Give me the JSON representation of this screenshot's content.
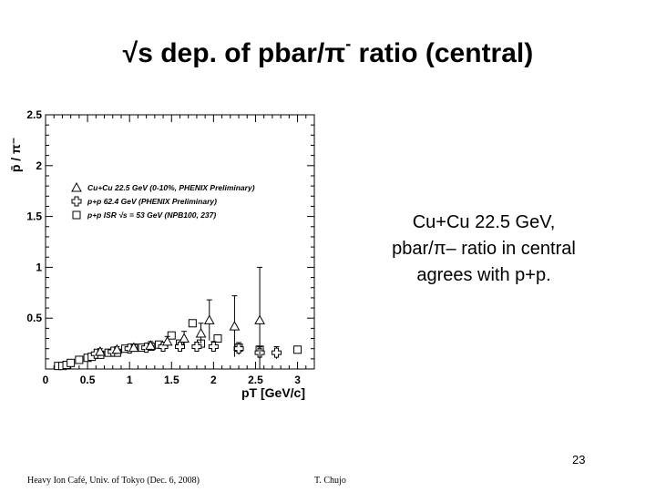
{
  "slide": {
    "title_prefix": "√s dep. of pbar/π",
    "title_sup": "-",
    "title_suffix": " ratio (central)",
    "note_lines": [
      "Cu+Cu 22.5 GeV,",
      "pbar/π– ratio in central",
      "agrees with p+p."
    ],
    "page_number": "23",
    "footer_left": "Heavy Ion Café, Univ. of Tokyo (Dec. 6, 2008)",
    "footer_center": "T. Chujo"
  },
  "chart_data": {
    "type": "scatter",
    "xlabel": "pT [GeV/c]",
    "ylabel": "p̄ / π⁻",
    "xlim": [
      0,
      3.2
    ],
    "ylim": [
      0,
      2.5
    ],
    "xticks": [
      "0",
      "0.5",
      "1",
      "1.5",
      "2",
      "2.5",
      "3"
    ],
    "yticks": [
      "0.5",
      "1",
      "1.5",
      "2",
      "2.5"
    ],
    "legend_position": "upper-left",
    "series": [
      {
        "name": "Cu+Cu 22.5  GeV (0-10%, PHENIX Preliminary)",
        "marker": "triangle",
        "points": [
          {
            "x": 0.65,
            "y": 0.17,
            "err": 0.03
          },
          {
            "x": 0.85,
            "y": 0.19,
            "err": 0.03
          },
          {
            "x": 1.05,
            "y": 0.21,
            "err": 0.03
          },
          {
            "x": 1.25,
            "y": 0.23,
            "err": 0.04
          },
          {
            "x": 1.45,
            "y": 0.27,
            "err": 0.05
          },
          {
            "x": 1.65,
            "y": 0.3,
            "err": 0.07
          },
          {
            "x": 1.85,
            "y": 0.35,
            "err": 0.1
          },
          {
            "x": 1.95,
            "y": 0.48,
            "err": 0.2
          },
          {
            "x": 2.25,
            "y": 0.42,
            "err": 0.3
          },
          {
            "x": 2.55,
            "y": 0.48,
            "err": 0.52
          }
        ]
      },
      {
        "name": "p+p 62.4 GeV (PHENIX Preliminary)",
        "marker": "cross",
        "points": [
          {
            "x": 0.6,
            "y": 0.15,
            "err": 0.02
          },
          {
            "x": 0.8,
            "y": 0.17,
            "err": 0.02
          },
          {
            "x": 1.0,
            "y": 0.2,
            "err": 0.02
          },
          {
            "x": 1.2,
            "y": 0.21,
            "err": 0.02
          },
          {
            "x": 1.4,
            "y": 0.22,
            "err": 0.03
          },
          {
            "x": 1.6,
            "y": 0.22,
            "err": 0.03
          },
          {
            "x": 1.8,
            "y": 0.22,
            "err": 0.04
          },
          {
            "x": 2.0,
            "y": 0.22,
            "err": 0.05
          },
          {
            "x": 2.3,
            "y": 0.2,
            "err": 0.06
          },
          {
            "x": 2.55,
            "y": 0.16,
            "err": 0.06
          },
          {
            "x": 2.75,
            "y": 0.16,
            "err": 0.06
          }
        ]
      },
      {
        "name": "p+p ISR √s = 53 GeV (NPB100, 237)",
        "marker": "square",
        "points": [
          {
            "x": 0.15,
            "y": 0.03
          },
          {
            "x": 0.2,
            "y": 0.03
          },
          {
            "x": 0.25,
            "y": 0.04
          },
          {
            "x": 0.3,
            "y": 0.06
          },
          {
            "x": 0.4,
            "y": 0.09
          },
          {
            "x": 0.5,
            "y": 0.11
          },
          {
            "x": 0.55,
            "y": 0.12
          },
          {
            "x": 0.65,
            "y": 0.14
          },
          {
            "x": 0.75,
            "y": 0.16
          },
          {
            "x": 0.85,
            "y": 0.16
          },
          {
            "x": 0.95,
            "y": 0.2
          },
          {
            "x": 1.05,
            "y": 0.21
          },
          {
            "x": 1.15,
            "y": 0.21
          },
          {
            "x": 1.25,
            "y": 0.22
          },
          {
            "x": 1.35,
            "y": 0.24
          },
          {
            "x": 1.5,
            "y": 0.33
          },
          {
            "x": 1.6,
            "y": 0.25
          },
          {
            "x": 1.75,
            "y": 0.45
          },
          {
            "x": 1.85,
            "y": 0.25
          },
          {
            "x": 2.05,
            "y": 0.3
          },
          {
            "x": 2.3,
            "y": 0.21
          },
          {
            "x": 2.55,
            "y": 0.19
          },
          {
            "x": 3.0,
            "y": 0.19
          }
        ]
      }
    ]
  }
}
